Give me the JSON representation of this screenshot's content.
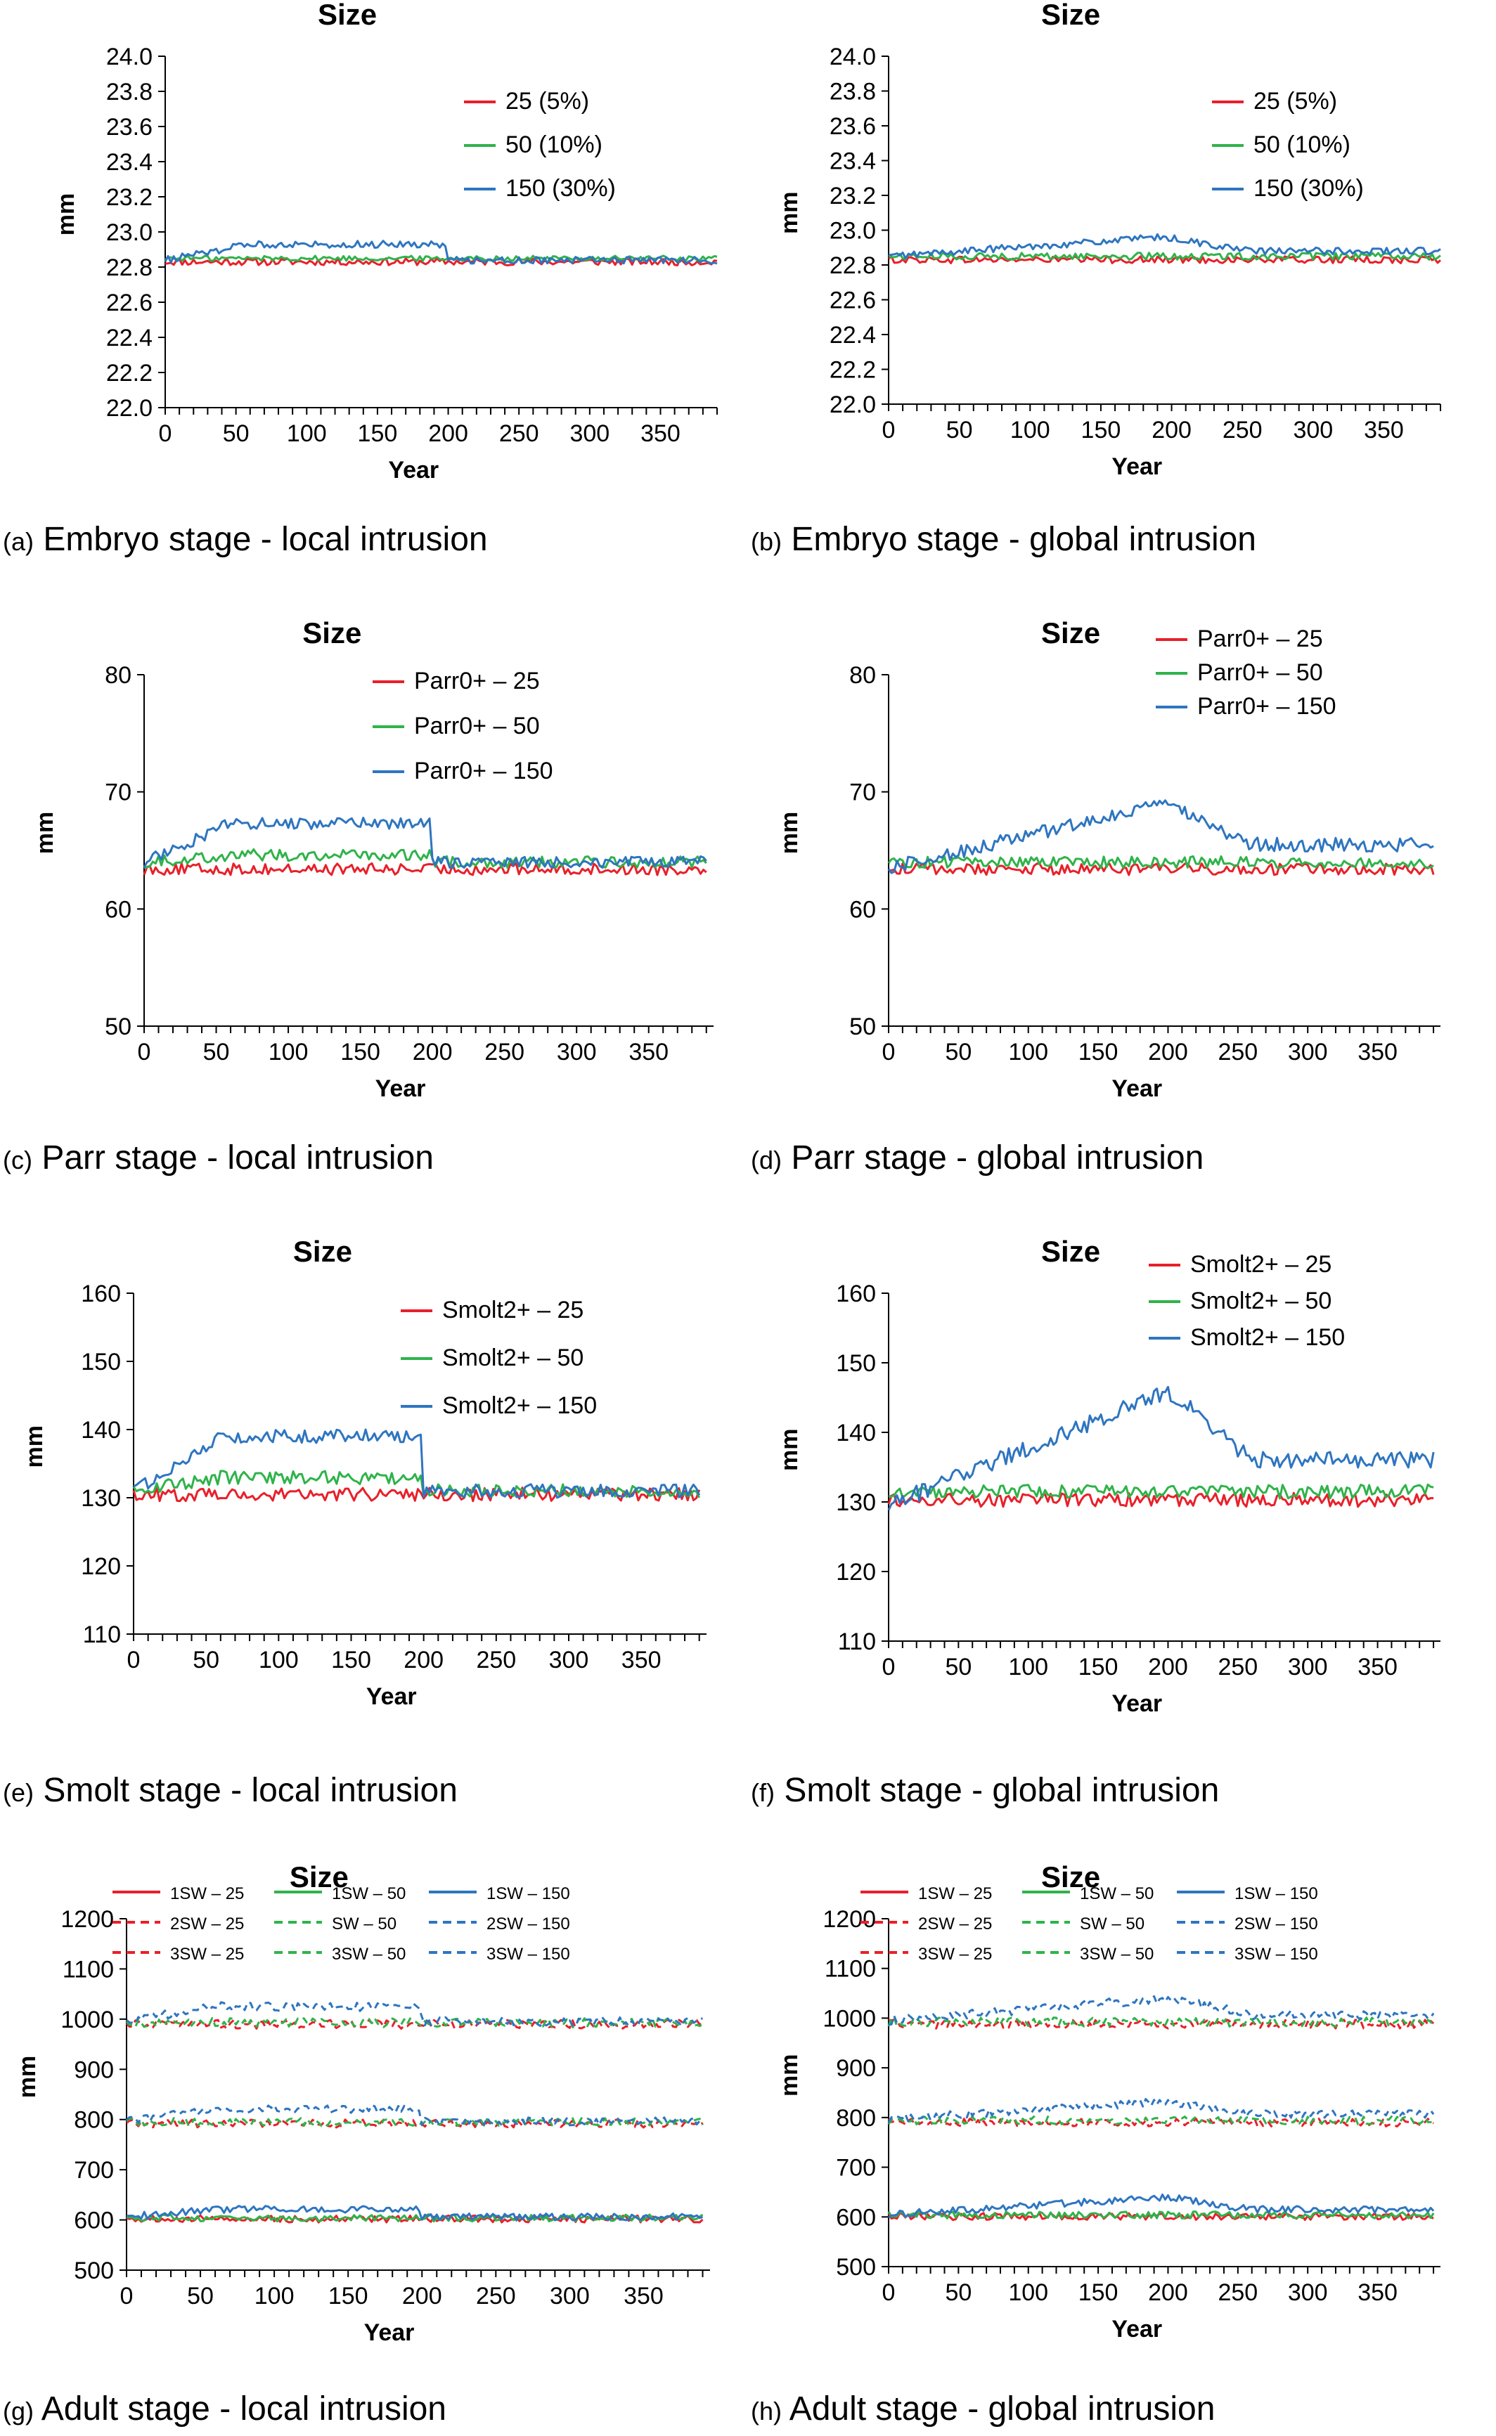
{
  "colors": {
    "red": "#e8202a",
    "green": "#2fb34a",
    "blue": "#2e75c0"
  },
  "panels": [
    {
      "id": "a",
      "letter": "(a)",
      "caption": "Embryo stage - local intrusion",
      "chart_data": {
        "type": "line",
        "title": "Size",
        "xlabel": "Year",
        "ylabel": "mm",
        "xlim": [
          0,
          390
        ],
        "ylim": [
          22.0,
          24.0
        ],
        "xticks": [
          "0",
          "50",
          "100",
          "150",
          "200",
          "250",
          "300",
          "350"
        ],
        "yticks": [
          "22.0",
          "22.2",
          "22.4",
          "22.6",
          "22.8",
          "23.0",
          "23.2",
          "23.4",
          "23.6",
          "23.8",
          "24.0"
        ],
        "legend_position": "top-right",
        "grid": false,
        "series": [
          {
            "name": "25 (5%)",
            "color": "red",
            "dash": false,
            "base": 22.83,
            "noise": 0.02
          },
          {
            "name": "50 (10%)",
            "color": "green",
            "dash": false,
            "base": 22.85,
            "noise": 0.015
          },
          {
            "name": "150 (30%)",
            "color": "blue",
            "dash": false,
            "base": 22.84,
            "noise": 0.02,
            "bump": 0.09,
            "drop_year": 200
          }
        ]
      }
    },
    {
      "id": "b",
      "letter": "(b)",
      "caption": "Embryo stage - global intrusion",
      "chart_data": {
        "type": "line",
        "title": "Size",
        "xlabel": "Year",
        "ylabel": "mm",
        "xlim": [
          0,
          390
        ],
        "ylim": [
          22.0,
          24.0
        ],
        "xticks": [
          "0",
          "50",
          "100",
          "150",
          "200",
          "250",
          "300",
          "350"
        ],
        "yticks": [
          "22.0",
          "22.2",
          "22.4",
          "22.6",
          "22.8",
          "23.0",
          "23.2",
          "23.4",
          "23.6",
          "23.8",
          "24.0"
        ],
        "legend_position": "top-right",
        "grid": false,
        "series": [
          {
            "name": "25 (5%)",
            "color": "red",
            "dash": false,
            "base": 22.83,
            "noise": 0.02
          },
          {
            "name": "50 (10%)",
            "color": "green",
            "dash": false,
            "base": 22.85,
            "noise": 0.02
          },
          {
            "name": "150 (30%)",
            "color": "blue",
            "dash": false,
            "base": 22.85,
            "noise": 0.02,
            "rise": 0.11,
            "decay": 0.03,
            "peak_year": 195
          }
        ]
      }
    },
    {
      "id": "c",
      "letter": "(c)",
      "caption": "Parr stage - local intrusion",
      "chart_data": {
        "type": "line",
        "title": "Size",
        "xlabel": "Year",
        "ylabel": "mm",
        "xlim": [
          0,
          395
        ],
        "ylim": [
          50,
          80
        ],
        "xticks": [
          "0",
          "50",
          "100",
          "150",
          "200",
          "250",
          "300",
          "350"
        ],
        "yticks": [
          "50",
          "60",
          "70",
          "80"
        ],
        "legend_position": "top-right",
        "grid": false,
        "series": [
          {
            "name": "Parr0+ – 25",
            "color": "red",
            "dash": false,
            "base": 63.4,
            "noise": 0.5
          },
          {
            "name": "Parr0+ – 50",
            "color": "green",
            "dash": false,
            "base": 64.0,
            "noise": 0.5,
            "bump": 0.6,
            "drop_year": 200
          },
          {
            "name": "Parr0+ – 150",
            "color": "blue",
            "dash": false,
            "base": 64.0,
            "noise": 0.5,
            "bump": 3.3,
            "drop_year": 200
          }
        ]
      }
    },
    {
      "id": "d",
      "letter": "(d)",
      "caption": "Parr stage - global intrusion",
      "chart_data": {
        "type": "line",
        "title": "Size",
        "xlabel": "Year",
        "ylabel": "mm",
        "xlim": [
          0,
          395
        ],
        "ylim": [
          50,
          80
        ],
        "xticks": [
          "0",
          "50",
          "100",
          "150",
          "200",
          "250",
          "300",
          "350"
        ],
        "yticks": [
          "50",
          "60",
          "70",
          "80"
        ],
        "legend_position": "top-right",
        "grid": false,
        "series": [
          {
            "name": "Parr0+ – 25",
            "color": "red",
            "dash": false,
            "base": 63.4,
            "noise": 0.5
          },
          {
            "name": "Parr0+ – 50",
            "color": "green",
            "dash": false,
            "base": 64.0,
            "noise": 0.5
          },
          {
            "name": "Parr0+ – 150",
            "color": "blue",
            "dash": false,
            "base": 63.5,
            "noise": 0.6,
            "rise": 5.5,
            "decay": 2.0,
            "peak_year": 200
          }
        ]
      }
    },
    {
      "id": "e",
      "letter": "(e)",
      "caption": "Smolt stage - local intrusion",
      "chart_data": {
        "type": "line",
        "title": "Size",
        "xlabel": "Year",
        "ylabel": "mm",
        "xlim": [
          0,
          395
        ],
        "ylim": [
          110,
          160
        ],
        "xticks": [
          "0",
          "50",
          "100",
          "150",
          "200",
          "250",
          "300",
          "350"
        ],
        "yticks": [
          "110",
          "120",
          "130",
          "140",
          "150",
          "160"
        ],
        "legend_position": "top-right",
        "grid": false,
        "series": [
          {
            "name": "Smolt2+ – 25",
            "color": "red",
            "dash": false,
            "base": 130.5,
            "noise": 1.0
          },
          {
            "name": "Smolt2+ – 50",
            "color": "green",
            "dash": false,
            "base": 131.0,
            "noise": 1.0,
            "bump": 2.0,
            "drop_year": 200
          },
          {
            "name": "Smolt2+ – 150",
            "color": "blue",
            "dash": false,
            "base": 131.0,
            "noise": 1.0,
            "bump": 8.0,
            "drop_year": 200
          }
        ]
      }
    },
    {
      "id": "f",
      "letter": "(f)",
      "caption": "Smolt stage - global intrusion",
      "chart_data": {
        "type": "line",
        "title": "Size",
        "xlabel": "Year",
        "ylabel": "mm",
        "xlim": [
          0,
          395
        ],
        "ylim": [
          110,
          160
        ],
        "xticks": [
          "0",
          "50",
          "100",
          "150",
          "200",
          "250",
          "300",
          "350"
        ],
        "yticks": [
          "110",
          "120",
          "130",
          "140",
          "150",
          "160"
        ],
        "legend_position": "top-right",
        "grid": false,
        "series": [
          {
            "name": "Smolt2+ – 25",
            "color": "red",
            "dash": false,
            "base": 130.3,
            "noise": 1.0
          },
          {
            "name": "Smolt2+ – 50",
            "color": "green",
            "dash": false,
            "base": 131.5,
            "noise": 1.0
          },
          {
            "name": "Smolt2+ – 150",
            "color": "blue",
            "dash": false,
            "base": 129.5,
            "noise": 1.2,
            "rise": 16.5,
            "decay": 6.5,
            "peak_year": 200
          }
        ]
      }
    },
    {
      "id": "g",
      "letter": "(g)",
      "caption": "Adult stage - local intrusion",
      "chart_data": {
        "type": "line",
        "title": "Size",
        "xlabel": "Year",
        "ylabel": "mm",
        "xlim": [
          0,
          395
        ],
        "ylim": [
          500,
          1200
        ],
        "xticks": [
          "0",
          "50",
          "100",
          "150",
          "200",
          "250",
          "300",
          "350"
        ],
        "yticks": [
          "500",
          "600",
          "700",
          "800",
          "900",
          "1000",
          "1100",
          "1200"
        ],
        "legend_position": "top",
        "legend_columns": 3,
        "grid": false,
        "series": [
          {
            "name": "1SW – 25",
            "color": "red",
            "dash": false,
            "base": 602,
            "noise": 7
          },
          {
            "name": "2SW – 25",
            "color": "red",
            "dash": true,
            "base": 792,
            "noise": 8
          },
          {
            "name": "3SW – 25",
            "color": "red",
            "dash": true,
            "base": 990,
            "noise": 9
          },
          {
            "name": "1SW – 50",
            "color": "green",
            "dash": false,
            "base": 604,
            "noise": 7
          },
          {
            "name": "SW – 50",
            "color": "green",
            "dash": true,
            "base": 795,
            "noise": 8
          },
          {
            "name": "3SW – 50",
            "color": "green",
            "dash": true,
            "base": 993,
            "noise": 9
          },
          {
            "name": "1SW – 150",
            "color": "blue",
            "dash": false,
            "base": 606,
            "noise": 7,
            "bump": 15,
            "drop_year": 200
          },
          {
            "name": "2SW – 150",
            "color": "blue",
            "dash": true,
            "base": 796,
            "noise": 8,
            "bump": 25,
            "drop_year": 200
          },
          {
            "name": "3SW – 150",
            "color": "blue",
            "dash": true,
            "base": 995,
            "noise": 9,
            "bump": 30,
            "drop_year": 200
          }
        ]
      }
    },
    {
      "id": "h",
      "letter": "(h)",
      "caption": "Adult stage - global intrusion",
      "chart_data": {
        "type": "line",
        "title": "Size",
        "xlabel": "Year",
        "ylabel": "mm",
        "xlim": [
          0,
          395
        ],
        "ylim": [
          500,
          1200
        ],
        "xticks": [
          "0",
          "50",
          "100",
          "150",
          "200",
          "250",
          "300",
          "350"
        ],
        "yticks": [
          "500",
          "600",
          "700",
          "800",
          "900",
          "1000",
          "1100",
          "1200"
        ],
        "legend_position": "top",
        "legend_columns": 3,
        "grid": false,
        "series": [
          {
            "name": "1SW – 25",
            "color": "red",
            "dash": false,
            "base": 601,
            "noise": 7
          },
          {
            "name": "2SW – 25",
            "color": "red",
            "dash": true,
            "base": 790,
            "noise": 8
          },
          {
            "name": "3SW – 25",
            "color": "red",
            "dash": true,
            "base": 988,
            "noise": 9
          },
          {
            "name": "1SW – 50",
            "color": "green",
            "dash": false,
            "base": 604,
            "noise": 7
          },
          {
            "name": "SW – 50",
            "color": "green",
            "dash": true,
            "base": 794,
            "noise": 8
          },
          {
            "name": "3SW – 50",
            "color": "green",
            "dash": true,
            "base": 992,
            "noise": 9
          },
          {
            "name": "1SW – 150",
            "color": "blue",
            "dash": false,
            "base": 605,
            "noise": 7,
            "rise": 35,
            "decay": 10,
            "peak_year": 200
          },
          {
            "name": "2SW – 150",
            "color": "blue",
            "dash": true,
            "base": 797,
            "noise": 8,
            "rise": 35,
            "decay": 10,
            "peak_year": 200
          },
          {
            "name": "3SW – 150",
            "color": "blue",
            "dash": true,
            "base": 995,
            "noise": 9,
            "rise": 45,
            "decay": 12,
            "peak_year": 200
          }
        ]
      }
    }
  ]
}
